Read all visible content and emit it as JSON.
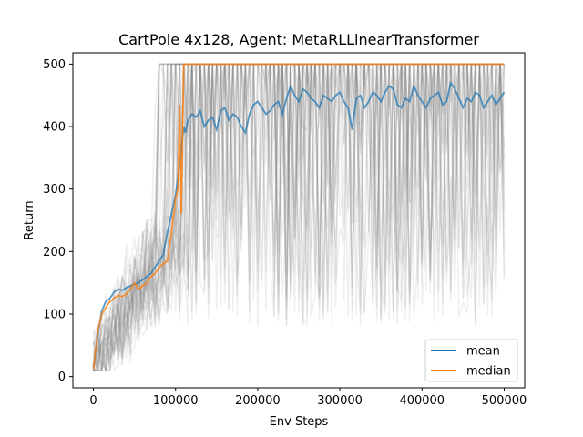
{
  "chart_data": {
    "type": "line",
    "title": "CartPole 4x128, Agent: MetaRLLinearTransformer",
    "xlabel": "Env Steps",
    "ylabel": "Return",
    "xlim": [
      -25000,
      525000
    ],
    "ylim": [
      -18,
      518
    ],
    "xticks": [
      0,
      100000,
      200000,
      300000,
      400000,
      500000
    ],
    "xtick_labels": [
      "0",
      "100000",
      "200000",
      "300000",
      "400000",
      "500000"
    ],
    "yticks": [
      0,
      100,
      200,
      300,
      400,
      500
    ],
    "ytick_labels": [
      "0",
      "100",
      "200",
      "300",
      "400",
      "500"
    ],
    "grid": false,
    "legend_position": "lower-right",
    "colors": {
      "mean": "#1f77b4",
      "median": "#ff7f0e",
      "runs": "#808080"
    },
    "series": [
      {
        "name": "mean",
        "x": [
          0,
          5000,
          10000,
          15000,
          20000,
          25000,
          30000,
          35000,
          40000,
          45000,
          50000,
          55000,
          60000,
          65000,
          70000,
          75000,
          80000,
          85000,
          90000,
          95000,
          100000,
          105000,
          110000,
          112000,
          115000,
          120000,
          125000,
          130000,
          135000,
          140000,
          145000,
          150000,
          155000,
          160000,
          165000,
          170000,
          175000,
          180000,
          185000,
          190000,
          195000,
          200000,
          205000,
          210000,
          215000,
          220000,
          225000,
          230000,
          235000,
          240000,
          245000,
          250000,
          255000,
          260000,
          265000,
          270000,
          275000,
          280000,
          285000,
          290000,
          295000,
          300000,
          305000,
          310000,
          315000,
          320000,
          325000,
          330000,
          335000,
          340000,
          345000,
          350000,
          355000,
          360000,
          365000,
          370000,
          375000,
          380000,
          385000,
          390000,
          395000,
          400000,
          405000,
          410000,
          415000,
          420000,
          425000,
          430000,
          435000,
          440000,
          445000,
          450000,
          455000,
          460000,
          465000,
          470000,
          475000,
          480000,
          485000,
          490000,
          495000,
          500000
        ],
        "values": [
          15,
          65,
          105,
          120,
          125,
          135,
          140,
          138,
          142,
          145,
          148,
          150,
          155,
          160,
          165,
          175,
          185,
          195,
          230,
          260,
          290,
          340,
          400,
          390,
          410,
          420,
          415,
          425,
          400,
          410,
          415,
          395,
          425,
          430,
          410,
          420,
          415,
          400,
          390,
          420,
          435,
          440,
          430,
          420,
          425,
          435,
          440,
          420,
          445,
          465,
          450,
          440,
          460,
          455,
          445,
          440,
          430,
          450,
          445,
          440,
          450,
          455,
          440,
          430,
          395,
          445,
          450,
          430,
          440,
          455,
          450,
          440,
          455,
          465,
          460,
          435,
          430,
          445,
          440,
          465,
          450,
          440,
          430,
          445,
          450,
          455,
          435,
          440,
          470,
          460,
          445,
          430,
          445,
          440,
          455,
          450,
          430,
          440,
          450,
          435,
          445,
          455
        ]
      },
      {
        "name": "median",
        "x": [
          0,
          5000,
          10000,
          15000,
          20000,
          25000,
          30000,
          35000,
          40000,
          45000,
          50000,
          55000,
          60000,
          65000,
          70000,
          75000,
          80000,
          85000,
          90000,
          95000,
          100000,
          103000,
          105000,
          107000,
          110000,
          112000,
          120000,
          150000,
          200000,
          300000,
          400000,
          500000
        ],
        "values": [
          12,
          70,
          100,
          110,
          120,
          125,
          130,
          128,
          132,
          140,
          150,
          140,
          145,
          150,
          160,
          165,
          175,
          180,
          185,
          230,
          285,
          300,
          435,
          260,
          500,
          500,
          500,
          500,
          500,
          500,
          500,
          500
        ]
      }
    ],
    "legend": [
      {
        "label": "mean",
        "color_key": "mean"
      },
      {
        "label": "median",
        "color_key": "median"
      }
    ]
  }
}
